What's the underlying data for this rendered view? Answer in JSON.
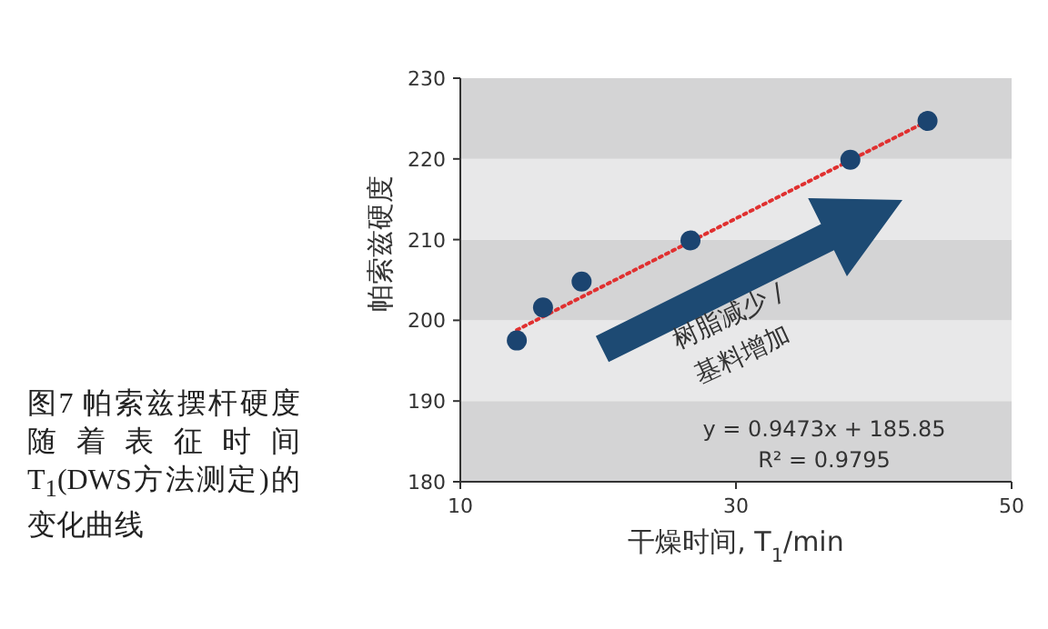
{
  "chart_data": {
    "type": "scatter",
    "title": "图7 帕索兹摆杆硬度随着表征时间 T$_{1}$(DWS方法测定)的变化曲线",
    "xlabel": "干燥时间, T$_{1}$/min",
    "ylabel": "帕索兹硬度",
    "xlim": [
      10,
      50
    ],
    "xticks": [
      10,
      30,
      50
    ],
    "ylim": [
      180,
      230
    ],
    "yticks": [
      180,
      190,
      200,
      210,
      220,
      230
    ],
    "bands": [
      {
        "axis": "y",
        "from": 180,
        "to": 190,
        "color": "#d4d4d5"
      },
      {
        "axis": "y",
        "from": 190,
        "to": 200,
        "color": "#e8e8e9"
      },
      {
        "axis": "y",
        "from": 200,
        "to": 210,
        "color": "#d4d4d5"
      },
      {
        "axis": "y",
        "from": 210,
        "to": 220,
        "color": "#e8e8e9"
      },
      {
        "axis": "y",
        "from": 220,
        "to": 230,
        "color": "#d4d4d5"
      }
    ],
    "series": [
      {
        "type": "line",
        "x": [
          14.1,
          43.9
        ],
        "values": [
          198.8,
          224.7
        ],
        "color": "#e03030",
        "marker": "none",
        "line_style": "dotted"
      },
      {
        "x": [
          14.1,
          16.0,
          18.8,
          26.7,
          38.3,
          43.9
        ],
        "values": [
          197.5,
          201.6,
          204.8,
          209.9,
          219.9,
          224.7
        ],
        "color": "#1b4470",
        "marker": "circle"
      }
    ],
    "annotations": [
      "树脂减少 /",
      "基料增加",
      "y = 0.9473x + 185.85",
      "R² = 0.9795"
    ]
  }
}
